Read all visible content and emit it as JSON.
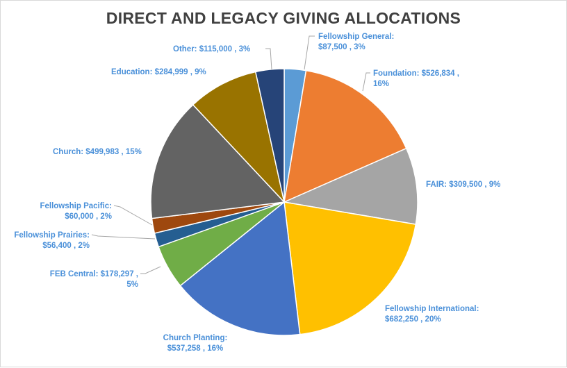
{
  "chart_data": {
    "type": "pie",
    "title": "DIRECT AND LEGACY GIVING ALLOCATIONS",
    "label_color": "#4a90d9",
    "slices": [
      {
        "name": "Fellowship General",
        "value": 87500,
        "percent": 3,
        "color": "#5b9bd5",
        "label_lines": [
          "Fellowship General:",
          "$87,500 , 3%"
        ]
      },
      {
        "name": "Foundation",
        "value": 526834,
        "percent": 16,
        "color": "#ed7d31",
        "label_lines": [
          "Foundation: $526,834 ,",
          "16%"
        ]
      },
      {
        "name": "FAIR",
        "value": 309500,
        "percent": 9,
        "color": "#a5a5a5",
        "label_lines": [
          "FAIR: $309,500 , 9%"
        ]
      },
      {
        "name": "Fellowship International",
        "value": 682250,
        "percent": 20,
        "color": "#ffc000",
        "label_lines": [
          "Fellowship International:",
          "$682,250 , 20%"
        ]
      },
      {
        "name": "Church Planting",
        "value": 537258,
        "percent": 16,
        "color": "#4472c4",
        "label_lines": [
          "Church Planting:",
          "$537,258 , 16%"
        ]
      },
      {
        "name": "FEB Central",
        "value": 178297,
        "percent": 5,
        "color": "#70ad47",
        "label_lines": [
          "FEB Central: $178,297 ,",
          "5%"
        ]
      },
      {
        "name": "Fellowship Prairies",
        "value": 56400,
        "percent": 2,
        "color": "#255e91",
        "label_lines": [
          "Fellowship Prairies:",
          "$56,400 , 2%"
        ]
      },
      {
        "name": "Fellowship Pacific",
        "value": 60000,
        "percent": 2,
        "color": "#9e480e",
        "label_lines": [
          "Fellowship Pacific:",
          "$60,000 , 2%"
        ]
      },
      {
        "name": "Church",
        "value": 499983,
        "percent": 15,
        "color": "#636363",
        "label_lines": [
          "Church: $499,983 , 15%"
        ]
      },
      {
        "name": "Education",
        "value": 284999,
        "percent": 9,
        "color": "#997300",
        "label_lines": [
          "Education: $284,999 , 9%"
        ]
      },
      {
        "name": "Other",
        "value": 115000,
        "percent": 3,
        "color": "#264478",
        "label_lines": [
          "Other: $115,000 , 3%"
        ]
      }
    ]
  }
}
